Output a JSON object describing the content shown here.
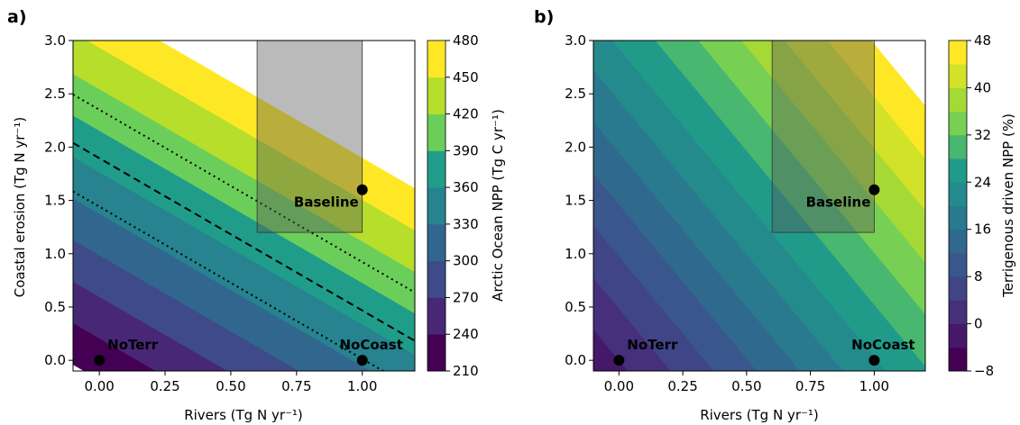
{
  "chart_data": [
    {
      "panel_label": "a)",
      "type": "contour",
      "xlabel": "Rivers (Tg N yr⁻¹)",
      "ylabel": "Coastal erosion (Tg N yr⁻¹)",
      "xlim": [
        -0.1,
        1.2
      ],
      "ylim": [
        -0.1,
        3.0
      ],
      "xticks": [
        "0.00",
        "0.25",
        "0.50",
        "0.75",
        "1.00"
      ],
      "yticks": [
        "0.0",
        "0.5",
        "1.0",
        "1.5",
        "2.0",
        "2.5",
        "3.0"
      ],
      "surface": {
        "at_origin": 224,
        "slope_rivers": 110,
        "slope_coastal": 77
      },
      "levels": [
        210,
        240,
        270,
        300,
        330,
        360,
        390,
        420,
        450,
        480
      ],
      "colorbar_label": "Arctic Ocean NPP (Tg C yr⁻¹)",
      "colorbar_ticks": [
        "210",
        "240",
        "270",
        "300",
        "330",
        "360",
        "390",
        "420",
        "450",
        "480"
      ],
      "reference_lines": [
        {
          "style": "dashed",
          "value": 370
        },
        {
          "style": "dotted",
          "value": 335
        },
        {
          "style": "dotted",
          "value": 405
        }
      ],
      "shaded_region": {
        "x": [
          0.6,
          1.0
        ],
        "y": [
          1.2,
          3.0
        ]
      },
      "points": [
        {
          "label": "NoTerr",
          "x": 0.0,
          "y": 0.0
        },
        {
          "label": "NoCoast",
          "x": 1.0,
          "y": 0.0
        },
        {
          "label": "Baseline",
          "x": 1.0,
          "y": 1.6
        }
      ]
    },
    {
      "panel_label": "b)",
      "type": "contour",
      "xlabel": "Rivers (Tg N yr⁻¹)",
      "ylabel": "",
      "xlim": [
        -0.1,
        1.2
      ],
      "ylim": [
        -0.1,
        3.0
      ],
      "xticks": [
        "0.00",
        "0.25",
        "0.50",
        "0.75",
        "1.00"
      ],
      "yticks": [
        "0.0",
        "0.5",
        "1.0",
        "1.5",
        "2.0",
        "2.5",
        "3.0"
      ],
      "surface": {
        "at_origin": 0,
        "slope_rivers": 23.7,
        "slope_coastal": 8.2
      },
      "levels": [
        -8,
        -4,
        0,
        4,
        8,
        12,
        16,
        20,
        24,
        28,
        32,
        36,
        40,
        44,
        48
      ],
      "colorbar_label": "Terrigenous driven NPP (%)",
      "colorbar_ticks": [
        "−8",
        "0",
        "8",
        "16",
        "24",
        "32",
        "40",
        "48"
      ],
      "reference_lines": [],
      "shaded_region": {
        "x": [
          0.6,
          1.0
        ],
        "y": [
          1.2,
          3.0
        ]
      },
      "points": [
        {
          "label": "NoTerr",
          "x": 0.0,
          "y": 0.0
        },
        {
          "label": "NoCoast",
          "x": 1.0,
          "y": 0.0
        },
        {
          "label": "Baseline",
          "x": 1.0,
          "y": 1.6
        }
      ]
    }
  ],
  "colormap": "viridis"
}
